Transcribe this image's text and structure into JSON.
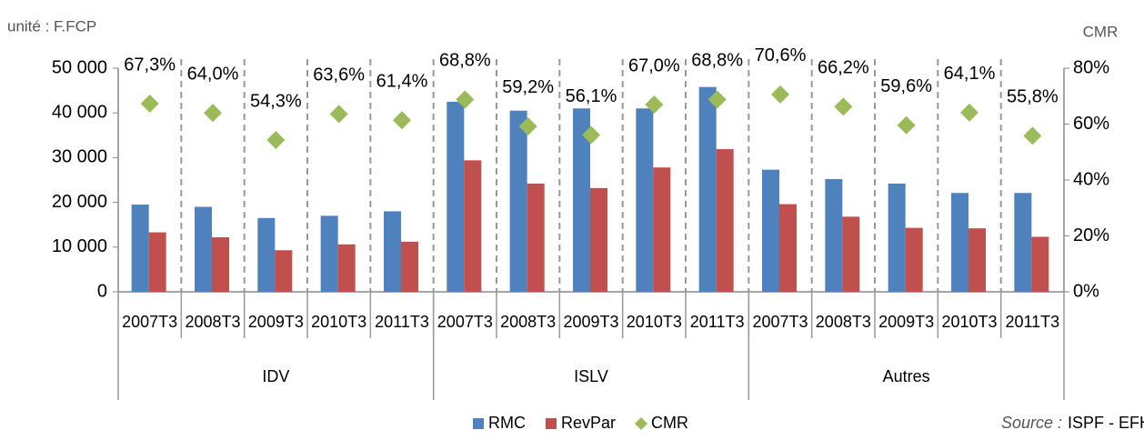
{
  "chart_data": {
    "type": "bar",
    "unit_label": "unité : F.FCP",
    "y2_label": "CMR",
    "source_label": "Source :",
    "source": "ISPF - EFH",
    "categories": [
      "2007T3",
      "2008T3",
      "2009T3",
      "2010T3",
      "2011T3",
      "2007T3",
      "2008T3",
      "2009T3",
      "2010T3",
      "2011T3",
      "2007T3",
      "2008T3",
      "2009T3",
      "2010T3",
      "2011T3"
    ],
    "groups": [
      "IDV",
      "ISLV",
      "Autres"
    ],
    "series": [
      {
        "name": "RMC",
        "color": "#4f81bd",
        "values": [
          19500,
          19000,
          16500,
          17000,
          18000,
          42500,
          40500,
          41000,
          41000,
          45800,
          27300,
          25200,
          24200,
          22100,
          22100
        ]
      },
      {
        "name": "RevPar",
        "color": "#c0504d",
        "values": [
          13300,
          12200,
          9300,
          10600,
          11200,
          29400,
          24200,
          23200,
          27800,
          31900,
          19600,
          16800,
          14300,
          14200,
          12300
        ]
      },
      {
        "name": "CMR",
        "color": "#9bbb59",
        "axis": "y2",
        "values": [
          67.3,
          64.0,
          54.3,
          63.6,
          61.4,
          68.8,
          59.2,
          56.1,
          67.0,
          68.8,
          70.6,
          66.2,
          59.6,
          64.1,
          55.8
        ],
        "value_labels": [
          "67,3%",
          "64,0%",
          "54,3%",
          "63,6%",
          "61,4%",
          "68,8%",
          "59,2%",
          "56,1%",
          "67,0%",
          "68,8%",
          "70,6%",
          "66,2%",
          "59,6%",
          "64,1%",
          "55,8%"
        ]
      }
    ],
    "ylim": [
      0,
      50000
    ],
    "yticks": [
      {
        "value": 0,
        "label": "0"
      },
      {
        "value": 10000,
        "label": "10 000"
      },
      {
        "value": 20000,
        "label": "20 000"
      },
      {
        "value": 30000,
        "label": "30 000"
      },
      {
        "value": 40000,
        "label": "40 000"
      },
      {
        "value": 50000,
        "label": "50 000"
      }
    ],
    "y2lim": [
      0,
      80
    ],
    "y2ticks": [
      {
        "value": 0,
        "label": "0%"
      },
      {
        "value": 20,
        "label": "20%"
      },
      {
        "value": 40,
        "label": "40%"
      },
      {
        "value": 60,
        "label": "60%"
      },
      {
        "value": 80,
        "label": "80%"
      }
    ],
    "legend": "bottom"
  }
}
